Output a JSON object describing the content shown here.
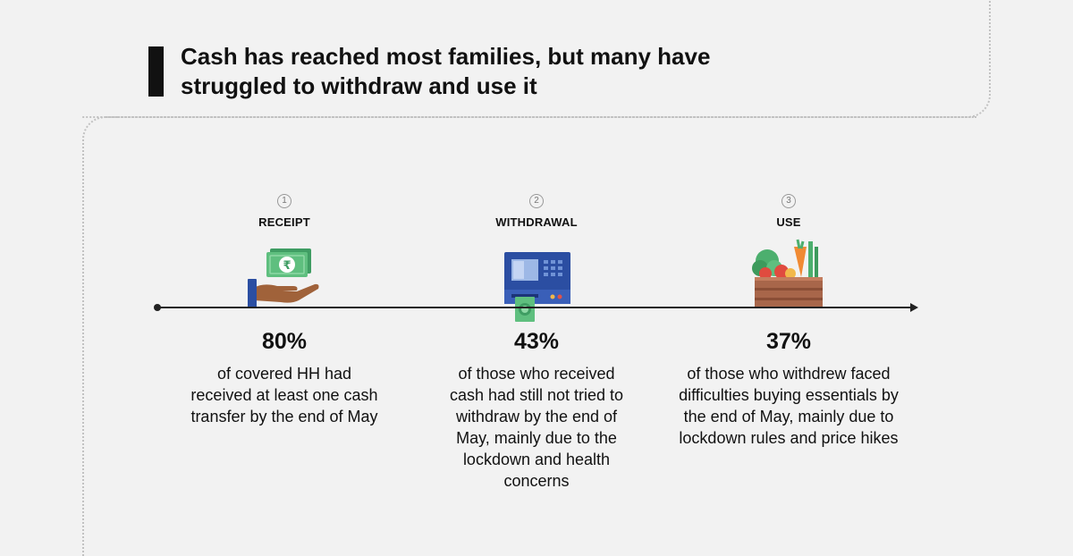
{
  "title": "Cash has reached most families, but many have struggled to withdraw and use it",
  "stages": [
    {
      "number": "1",
      "label": "RECEIPT",
      "icon": "hand-receiving-cash-icon",
      "currency_symbol": "₹",
      "percent": "80%",
      "description": "of covered HH had received at least one cash transfer by the end of May"
    },
    {
      "number": "2",
      "label": "WITHDRAWAL",
      "icon": "atm-machine-icon",
      "percent": "43%",
      "description": "of those who received cash had still not tried to withdraw by the end of May, mainly due to the lockdown and health concerns"
    },
    {
      "number": "3",
      "label": "USE",
      "icon": "vegetable-crate-icon",
      "percent": "37%",
      "description": "of those who withdrew faced difficulties buying essentials by the end of May, mainly due to lockdown rules and price hikes"
    }
  ],
  "colors": {
    "background": "#f2f2f2",
    "cash_green": "#5fbf7f",
    "atm_blue": "#2b4ea2",
    "skin": "#a0623a",
    "crate": "#a8664a",
    "text": "#111111"
  }
}
